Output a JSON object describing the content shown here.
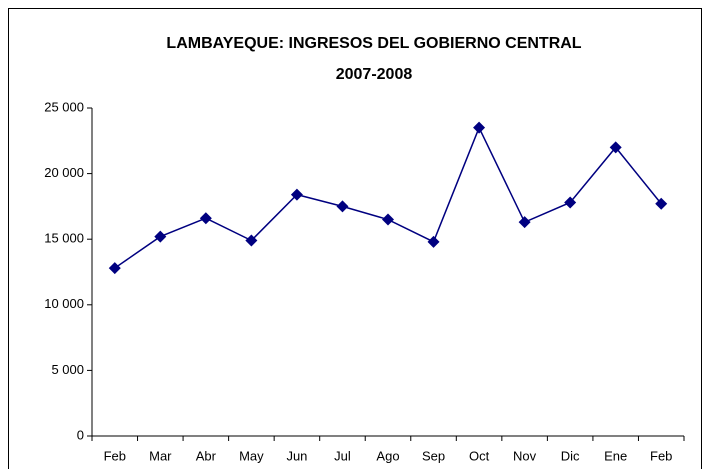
{
  "chart_data": {
    "type": "line",
    "title": "LAMBAYEQUE: INGRESOS DEL GOBIERNO CENTRAL",
    "subtitle": "2007-2008",
    "categories": [
      "Feb",
      "Mar",
      "Abr",
      "May",
      "Jun",
      "Jul",
      "Ago",
      "Sep",
      "Oct",
      "Nov",
      "Dic",
      "Ene",
      "Feb"
    ],
    "values": [
      12800,
      15200,
      16600,
      14900,
      18400,
      17500,
      16500,
      14800,
      23500,
      16300,
      17800,
      22000,
      17700
    ],
    "color": "#000080",
    "ylim": [
      0,
      25000
    ],
    "yticks": [
      0,
      {
        "value": 5000,
        "label": "5 000"
      },
      {
        "value": 10000,
        "label": "10 000"
      },
      {
        "value": 15000,
        "label": "15 000"
      },
      {
        "value": 20000,
        "label": "20 000"
      },
      {
        "value": 25000,
        "label": "25 000"
      }
    ],
    "grid": false
  }
}
